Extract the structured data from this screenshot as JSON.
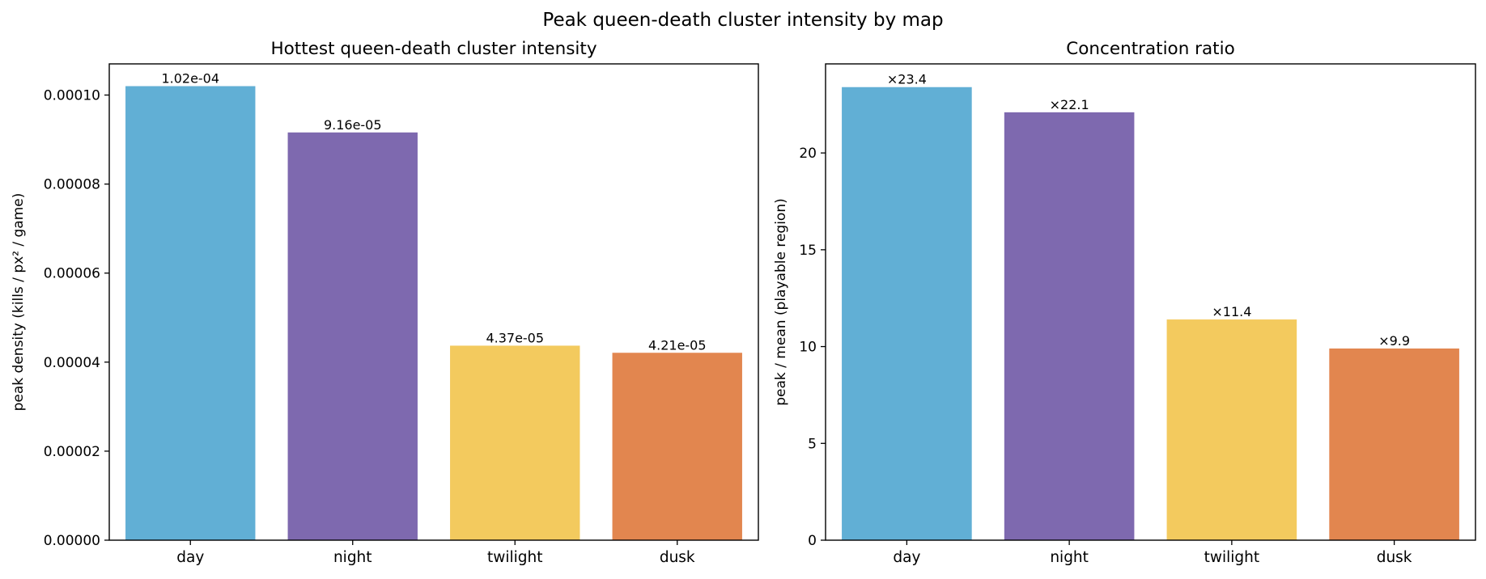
{
  "figure": {
    "suptitle": "Peak queen-death cluster intensity by map"
  },
  "chart_data": [
    {
      "type": "bar",
      "title": "Hottest queen-death cluster intensity",
      "xlabel": "",
      "ylabel": "peak density (kills / px² / game)",
      "categories": [
        "day",
        "night",
        "twilight",
        "dusk"
      ],
      "values": [
        0.000102,
        9.16e-05,
        4.37e-05,
        4.21e-05
      ],
      "data_labels": [
        "1.02e-04",
        "9.16e-05",
        "4.37e-05",
        "4.21e-05"
      ],
      "colors": [
        "#61AFD5",
        "#7E69AF",
        "#F3CA5E",
        "#E2864F"
      ],
      "ylim": [
        0,
        0.000107
      ],
      "yticks": [
        0,
        2e-05,
        4e-05,
        6e-05,
        8e-05,
        0.0001
      ],
      "ytick_labels": [
        "0.00000",
        "0.00002",
        "0.00004",
        "0.00006",
        "0.00008",
        "0.00010"
      ],
      "grid": false
    },
    {
      "type": "bar",
      "title": "Concentration ratio",
      "xlabel": "",
      "ylabel": "peak / mean (playable region)",
      "categories": [
        "day",
        "night",
        "twilight",
        "dusk"
      ],
      "values": [
        23.4,
        22.1,
        11.4,
        9.9
      ],
      "data_labels": [
        "×23.4",
        "×22.1",
        "×11.4",
        "×9.9"
      ],
      "colors": [
        "#61AFD5",
        "#7E69AF",
        "#F3CA5E",
        "#E2864F"
      ],
      "ylim": [
        0,
        24.6
      ],
      "yticks": [
        0,
        5,
        10,
        15,
        20
      ],
      "ytick_labels": [
        "0",
        "5",
        "10",
        "15",
        "20"
      ],
      "grid": false
    }
  ]
}
